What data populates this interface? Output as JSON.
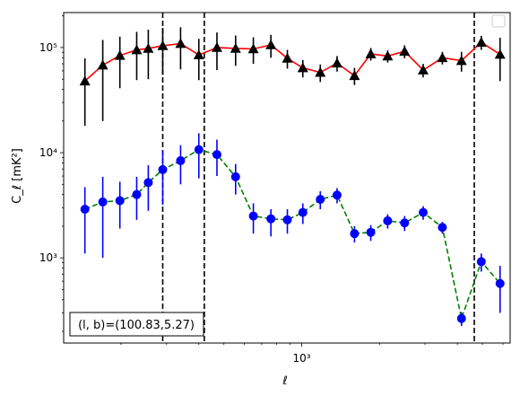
{
  "chart_data": {
    "type": "scatter",
    "xscale": "log",
    "yscale": "log",
    "xlim": [
      120,
      6400
    ],
    "ylim": [
      155,
      215000
    ],
    "xlabel": "ℓ",
    "ylabel": "C_ℓ  [mK²]",
    "xticks": [
      {
        "value": 1000,
        "label": "10³"
      }
    ],
    "yticks": [
      {
        "value": 1000,
        "label": "10³"
      },
      {
        "value": 10000,
        "label": "10⁴"
      },
      {
        "value": 100000,
        "label": "10⁵"
      }
    ],
    "annotation": "(l, b)=(100.83,5.27)",
    "vlines": [
      290,
      420,
      4650
    ],
    "legend": {
      "placement": "top-right",
      "entries": []
    },
    "series": [
      {
        "marker": "triangle",
        "color": "#000000",
        "line_color": "#ff0000",
        "line_style": "solid",
        "points": [
          {
            "x": 145,
            "y": 48000,
            "err": [
              18000,
              79000
            ]
          },
          {
            "x": 170,
            "y": 68000,
            "err": [
              20000,
              118000
            ]
          },
          {
            "x": 198,
            "y": 84000,
            "err": [
              41000,
              127000
            ]
          },
          {
            "x": 230,
            "y": 95000,
            "err": [
              49000,
              141000
            ]
          },
          {
            "x": 255,
            "y": 98000,
            "err": [
              50000,
              148000
            ]
          },
          {
            "x": 290,
            "y": 104000,
            "err": [
              55000,
              154000
            ]
          },
          {
            "x": 340,
            "y": 109000,
            "err": [
              62000,
              156000
            ]
          },
          {
            "x": 400,
            "y": 85000,
            "err": [
              49000,
              121000
            ]
          },
          {
            "x": 470,
            "y": 100000,
            "err": [
              61000,
              139000
            ]
          },
          {
            "x": 555,
            "y": 98000,
            "err": [
              67000,
              130000
            ]
          },
          {
            "x": 650,
            "y": 97000,
            "err": [
              70000,
              125000
            ]
          },
          {
            "x": 760,
            "y": 106000,
            "err": [
              80000,
              132000
            ]
          },
          {
            "x": 880,
            "y": 79000,
            "err": [
              63000,
              95000
            ]
          },
          {
            "x": 1010,
            "y": 64000,
            "err": [
              52000,
              76000
            ]
          },
          {
            "x": 1180,
            "y": 58000,
            "err": [
              47000,
              69000
            ]
          },
          {
            "x": 1370,
            "y": 71000,
            "err": [
              59000,
              83000
            ]
          },
          {
            "x": 1600,
            "y": 54000,
            "err": [
              44000,
              64000
            ]
          },
          {
            "x": 1850,
            "y": 87000,
            "err": [
              75000,
              99000
            ]
          },
          {
            "x": 2150,
            "y": 83000,
            "err": [
              72000,
              94000
            ]
          },
          {
            "x": 2500,
            "y": 92000,
            "err": [
              79000,
              105000
            ]
          },
          {
            "x": 2950,
            "y": 61000,
            "err": [
              52000,
              70000
            ]
          },
          {
            "x": 3500,
            "y": 80000,
            "err": [
              69000,
              91000
            ]
          },
          {
            "x": 4150,
            "y": 75000,
            "err": [
              59000,
              91000
            ]
          },
          {
            "x": 4950,
            "y": 112000,
            "err": [
              95000,
              129000
            ]
          },
          {
            "x": 5850,
            "y": 86000,
            "err": [
              48000,
              124000
            ]
          }
        ]
      },
      {
        "marker": "circle",
        "color": "#0000ff",
        "line_color": "#008000",
        "line_style": "dashed",
        "points": [
          {
            "x": 145,
            "y": 2900,
            "err": [
              1100,
              4700
            ]
          },
          {
            "x": 170,
            "y": 3400,
            "err": [
              1000,
              5900
            ]
          },
          {
            "x": 198,
            "y": 3500,
            "err": [
              1900,
              5300
            ]
          },
          {
            "x": 230,
            "y": 4000,
            "err": [
              2300,
              5900
            ]
          },
          {
            "x": 255,
            "y": 5200,
            "err": [
              2800,
              7600
            ]
          },
          {
            "x": 290,
            "y": 6900,
            "err": [
              3200,
              10500
            ]
          },
          {
            "x": 340,
            "y": 8400,
            "err": [
              5000,
              11800
            ]
          },
          {
            "x": 400,
            "y": 10700,
            "err": [
              5700,
              15300
            ]
          },
          {
            "x": 470,
            "y": 9600,
            "err": [
              6000,
              13300
            ]
          },
          {
            "x": 555,
            "y": 5900,
            "err": [
              4000,
              7800
            ]
          },
          {
            "x": 650,
            "y": 2500,
            "err": [
              1700,
              3300
            ]
          },
          {
            "x": 760,
            "y": 2350,
            "err": [
              1600,
              2900
            ]
          },
          {
            "x": 880,
            "y": 2300,
            "err": [
              1700,
              2900
            ]
          },
          {
            "x": 1010,
            "y": 2700,
            "err": [
              2100,
              3300
            ]
          },
          {
            "x": 1180,
            "y": 3600,
            "err": [
              2900,
              4300
            ]
          },
          {
            "x": 1370,
            "y": 3950,
            "err": [
              3300,
              4600
            ]
          },
          {
            "x": 1600,
            "y": 1700,
            "err": [
              1400,
              2000
            ]
          },
          {
            "x": 1850,
            "y": 1750,
            "err": [
              1450,
              2050
            ]
          },
          {
            "x": 2150,
            "y": 2250,
            "err": [
              1900,
              2600
            ]
          },
          {
            "x": 2500,
            "y": 2150,
            "err": [
              1800,
              2500
            ]
          },
          {
            "x": 2950,
            "y": 2700,
            "err": [
              2300,
              3100
            ]
          },
          {
            "x": 3500,
            "y": 1950,
            "err": [
              1700,
              2200
            ]
          },
          {
            "x": 4150,
            "y": 265,
            "err": [
              225,
              305
            ]
          },
          {
            "x": 4950,
            "y": 920,
            "err": [
              740,
              1100
            ]
          },
          {
            "x": 5850,
            "y": 570,
            "err": [
              300,
              840
            ]
          }
        ]
      }
    ]
  }
}
